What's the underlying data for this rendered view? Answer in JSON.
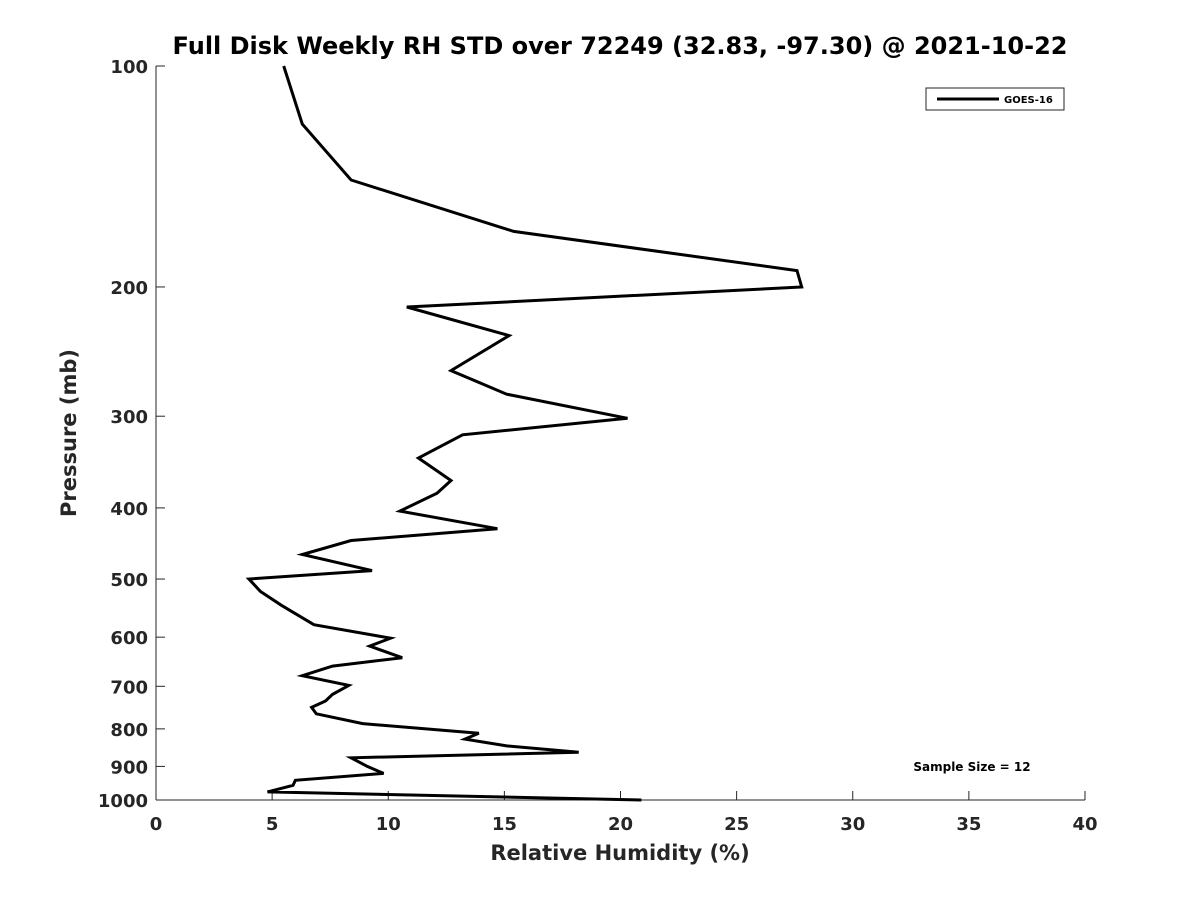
{
  "chart_data": {
    "type": "line",
    "title": "Full Disk Weekly RH STD over 72249 (32.83, -97.30) @ 2021-10-22",
    "xlabel": "Relative Humidity (%)",
    "ylabel": "Pressure (mb)",
    "xlim": [
      0,
      40
    ],
    "ylim": [
      100,
      1000
    ],
    "yscale": "log",
    "y_reversed": true,
    "xticks": [
      0,
      5,
      10,
      15,
      20,
      25,
      30,
      35,
      40
    ],
    "yticks": [
      100,
      200,
      300,
      400,
      500,
      600,
      700,
      800,
      900,
      1000
    ],
    "grid": false,
    "legend_position": "top-right",
    "annotation": "Sample Size = 12",
    "series": [
      {
        "name": "GOES-16",
        "color": "#000000",
        "x": [
          5.5,
          6.3,
          8.4,
          15.4,
          27.6,
          27.8,
          10.8,
          15.2,
          12.7,
          15.1,
          20.3,
          13.2,
          11.3,
          12.7,
          12.1,
          10.5,
          14.7,
          8.4,
          6.3,
          9.3,
          4.0,
          4.5,
          5.4,
          6.8,
          10.1,
          9.2,
          10.6,
          7.6,
          6.3,
          8.3,
          7.6,
          7.3,
          6.7,
          6.9,
          8.9,
          13.9,
          13.3,
          15.1,
          18.2,
          8.4,
          9.1,
          9.8,
          6.0,
          5.9,
          4.8,
          20.9
        ],
        "y": [
          100,
          120,
          143,
          168,
          190,
          200,
          213,
          233,
          260,
          280,
          302,
          318,
          342,
          367,
          382,
          404,
          427,
          443,
          463,
          487,
          500,
          520,
          543,
          577,
          602,
          617,
          640,
          657,
          677,
          698,
          718,
          733,
          748,
          763,
          787,
          811,
          826,
          844,
          861,
          876,
          900,
          920,
          940,
          955,
          975,
          1000
        ]
      }
    ]
  }
}
